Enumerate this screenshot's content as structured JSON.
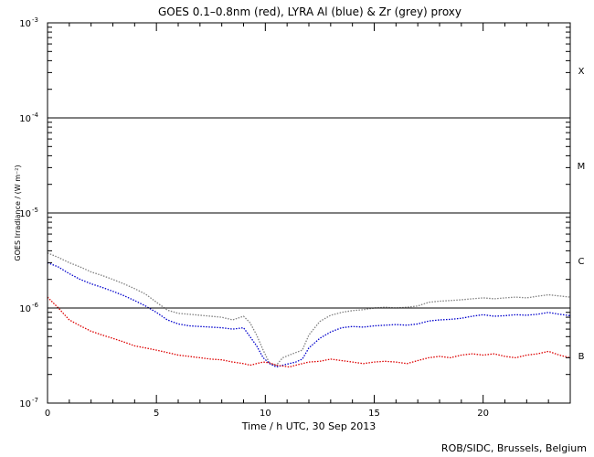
{
  "chart_data": {
    "type": "line",
    "title": "GOES 0.1–0.8nm (red), LYRA Al (blue) & Zr (grey) proxy",
    "xlabel": "Time / h UTC, 30 Sep 2013",
    "ylabel": "GOES Irradiance / (W m⁻²)",
    "xlim": [
      0,
      24
    ],
    "ylim": [
      1e-07,
      0.001
    ],
    "yscale": "log",
    "x_ticks": [
      {
        "value": 0,
        "label": "0"
      },
      {
        "value": 5,
        "label": "5"
      },
      {
        "value": 10,
        "label": "10"
      },
      {
        "value": 15,
        "label": "15"
      },
      {
        "value": 20,
        "label": "20"
      }
    ],
    "y_ticks": [
      {
        "value": 0.001,
        "base": "10",
        "exp": "-3"
      },
      {
        "value": 0.0001,
        "base": "10",
        "exp": "-4"
      },
      {
        "value": 1e-05,
        "base": "10",
        "exp": "-5"
      },
      {
        "value": 1e-06,
        "base": "10",
        "exp": "-6"
      },
      {
        "value": 1e-07,
        "base": "10",
        "exp": "-7"
      }
    ],
    "flare_class_lines": [
      0.0001,
      1e-05,
      1e-06
    ],
    "flare_class_labels": [
      {
        "label": "X",
        "value": 0.000316
      },
      {
        "label": "M",
        "value": 3.16e-05
      },
      {
        "label": "C",
        "value": 3.16e-06
      },
      {
        "label": "B",
        "value": 3.16e-07
      }
    ],
    "series": [
      {
        "color": "#808080",
        "x": [
          0,
          0.5,
          1,
          1.5,
          2,
          2.5,
          3,
          3.5,
          4,
          4.5,
          5,
          5.5,
          6,
          6.5,
          7,
          7.5,
          8,
          8.5,
          9,
          9.3,
          9.6,
          9.9,
          10.2,
          10.5,
          10.8,
          11.1,
          11.4,
          11.7,
          12,
          12.5,
          13,
          13.5,
          14,
          14.5,
          15,
          15.5,
          16,
          16.5,
          17,
          17.5,
          18,
          18.5,
          19,
          19.5,
          20,
          20.5,
          21,
          21.5,
          22,
          22.5,
          23,
          23.5,
          24
        ],
        "values": [
          3.8e-06,
          3.4e-06,
          3e-06,
          2.7e-06,
          2.4e-06,
          2.2e-06,
          2e-06,
          1.8e-06,
          1.6e-06,
          1.4e-06,
          1.15e-06,
          9.5e-07,
          8.8e-07,
          8.6e-07,
          8.4e-07,
          8.2e-07,
          8e-07,
          7.5e-07,
          8.2e-07,
          7e-07,
          5.2e-07,
          3.6e-07,
          2.6e-07,
          2.5e-07,
          3e-07,
          3.2e-07,
          3.4e-07,
          3.6e-07,
          5.2e-07,
          7.2e-07,
          8.4e-07,
          9e-07,
          9.4e-07,
          9.6e-07,
          1e-06,
          1.02e-06,
          1e-06,
          1.02e-06,
          1.05e-06,
          1.15e-06,
          1.18e-06,
          1.2e-06,
          1.22e-06,
          1.25e-06,
          1.28e-06,
          1.25e-06,
          1.28e-06,
          1.3e-06,
          1.28e-06,
          1.33e-06,
          1.38e-06,
          1.34e-06,
          1.3e-06
        ]
      },
      {
        "color": "#0000cc",
        "x": [
          0,
          0.5,
          1,
          1.5,
          2,
          2.5,
          3,
          3.5,
          4,
          4.5,
          5,
          5.5,
          6,
          6.5,
          7,
          7.5,
          8,
          8.5,
          9,
          9.3,
          9.6,
          9.9,
          10.2,
          10.5,
          10.8,
          11.1,
          11.4,
          11.7,
          12,
          12.5,
          13,
          13.5,
          14,
          14.5,
          15,
          15.5,
          16,
          16.5,
          17,
          17.5,
          18,
          18.5,
          19,
          19.5,
          20,
          20.5,
          21,
          21.5,
          22,
          22.5,
          23,
          23.5,
          24
        ],
        "values": [
          3e-06,
          2.7e-06,
          2.3e-06,
          2e-06,
          1.8e-06,
          1.65e-06,
          1.5e-06,
          1.35e-06,
          1.2e-06,
          1.05e-06,
          9e-07,
          7.5e-07,
          6.8e-07,
          6.5e-07,
          6.4e-07,
          6.3e-07,
          6.2e-07,
          6e-07,
          6.2e-07,
          5e-07,
          4e-07,
          3e-07,
          2.6e-07,
          2.4e-07,
          2.5e-07,
          2.6e-07,
          2.7e-07,
          2.9e-07,
          3.8e-07,
          4.8e-07,
          5.6e-07,
          6.2e-07,
          6.4e-07,
          6.3e-07,
          6.5e-07,
          6.6e-07,
          6.7e-07,
          6.6e-07,
          6.8e-07,
          7.3e-07,
          7.5e-07,
          7.6e-07,
          7.8e-07,
          8.2e-07,
          8.5e-07,
          8.2e-07,
          8.3e-07,
          8.5e-07,
          8.4e-07,
          8.6e-07,
          9e-07,
          8.6e-07,
          8.3e-07
        ]
      },
      {
        "color": "#dd0000",
        "x": [
          0,
          0.5,
          1,
          1.5,
          2,
          2.5,
          3,
          3.5,
          4,
          4.5,
          5,
          5.5,
          6,
          6.5,
          7,
          7.5,
          8,
          8.5,
          9,
          9.3,
          9.6,
          9.9,
          10.2,
          10.5,
          10.8,
          11.1,
          11.4,
          11.7,
          12,
          12.5,
          13,
          13.5,
          14,
          14.5,
          15,
          15.5,
          16,
          16.5,
          17,
          17.5,
          18,
          18.5,
          19,
          19.5,
          20,
          20.5,
          21,
          21.5,
          22,
          22.5,
          23,
          23.5,
          24
        ],
        "values": [
          1.3e-06,
          1e-06,
          7.5e-07,
          6.5e-07,
          5.7e-07,
          5.2e-07,
          4.8e-07,
          4.4e-07,
          4e-07,
          3.8e-07,
          3.6e-07,
          3.4e-07,
          3.2e-07,
          3.1e-07,
          3e-07,
          2.9e-07,
          2.85e-07,
          2.7e-07,
          2.6e-07,
          2.5e-07,
          2.6e-07,
          2.7e-07,
          2.65e-07,
          2.5e-07,
          2.45e-07,
          2.4e-07,
          2.5e-07,
          2.6e-07,
          2.7e-07,
          2.75e-07,
          2.9e-07,
          2.8e-07,
          2.7e-07,
          2.6e-07,
          2.7e-07,
          2.75e-07,
          2.7e-07,
          2.6e-07,
          2.8e-07,
          3e-07,
          3.1e-07,
          3e-07,
          3.2e-07,
          3.3e-07,
          3.2e-07,
          3.3e-07,
          3.1e-07,
          3e-07,
          3.2e-07,
          3.3e-07,
          3.5e-07,
          3.2e-07,
          3e-07
        ]
      }
    ],
    "grid": false,
    "legend": "none"
  },
  "credit": "ROB/SIDC, Brussels, Belgium"
}
